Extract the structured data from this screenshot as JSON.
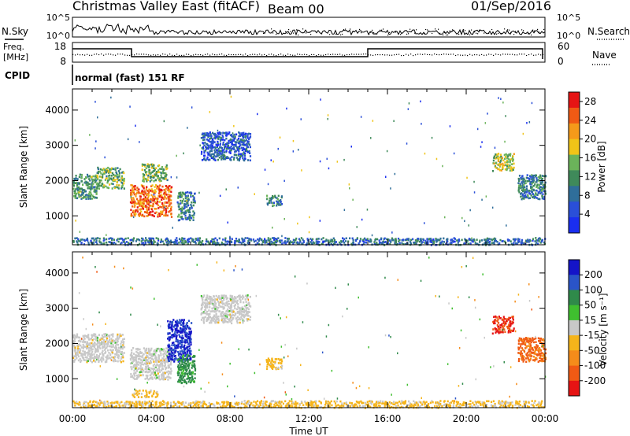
{
  "header": {
    "station": "Christmas Valley East (fitACF)",
    "beam": "Beam 00",
    "date": "01/Sep/2016"
  },
  "noise_panel": {
    "left_label": "N.Sky",
    "right_label": "N.Search",
    "ytick_top": "10^5",
    "ytick_bottom": "10^0"
  },
  "freq_panel": {
    "left_label_line1": "Freq.",
    "left_label_line2": "[MHz]",
    "left_tick_top": "18",
    "left_tick_bottom": "8",
    "right_label": "Nave",
    "right_tick_top": "60",
    "right_tick_bottom": "0"
  },
  "cpid": {
    "label": "CPID",
    "text": "normal (fast) 151 RF"
  },
  "colors": {
    "power_scale": [
      "#1a2ef0",
      "#2a4fd8",
      "#2f6e9a",
      "#3f8a5a",
      "#6bb35a",
      "#f0c418",
      "#f59a1a",
      "#f05a14",
      "#e61414"
    ],
    "velocity_scale": [
      "#e61414",
      "#f05a14",
      "#f58c1a",
      "#f5b41a",
      "#c8c8c8",
      "#3fbf2f",
      "#2f8a4a",
      "#2a54c8",
      "#1414c8"
    ]
  },
  "chart_data": [
    {
      "type": "heatmap",
      "name": "power",
      "xlabel": "",
      "ylabel": "Slant Range [km]",
      "x_ticks": [
        "00:00",
        "04:00",
        "08:00",
        "12:00",
        "16:00",
        "20:00",
        "00:00"
      ],
      "xlim_hours": [
        0,
        24
      ],
      "ylim_km": [
        180,
        4600
      ],
      "y_ticks": [
        1000,
        2000,
        3000,
        4000
      ],
      "colorbar": {
        "label": "Power [dB]",
        "ticks": [
          "4",
          "8",
          "12",
          "16",
          "20",
          "24",
          "28"
        ],
        "range": [
          0,
          30
        ]
      },
      "features": [
        {
          "t_start": 0.0,
          "t_end": 1.2,
          "r_start": 1500,
          "r_end": 2200,
          "typical": 12
        },
        {
          "t_start": 1.2,
          "t_end": 2.6,
          "r_start": 1800,
          "r_end": 2400,
          "typical": 14
        },
        {
          "t_start": 2.9,
          "t_end": 5.0,
          "r_start": 1000,
          "r_end": 1900,
          "typical": 24
        },
        {
          "t_start": 3.5,
          "t_end": 4.8,
          "r_start": 2000,
          "r_end": 2500,
          "typical": 14
        },
        {
          "t_start": 5.3,
          "t_end": 6.2,
          "r_start": 900,
          "r_end": 1700,
          "typical": 10
        },
        {
          "t_start": 6.5,
          "t_end": 9.0,
          "r_start": 2600,
          "r_end": 3400,
          "typical": 6
        },
        {
          "t_start": 9.8,
          "t_end": 10.6,
          "r_start": 1300,
          "r_end": 1600,
          "typical": 10
        },
        {
          "t_start": 21.3,
          "t_end": 22.4,
          "r_start": 2300,
          "r_end": 2800,
          "typical": 16
        },
        {
          "t_start": 22.6,
          "t_end": 24.0,
          "r_start": 1500,
          "r_end": 2200,
          "typical": 10
        },
        {
          "t_start": 0.0,
          "t_end": 24.0,
          "r_start": 200,
          "r_end": 400,
          "typical": 8
        }
      ]
    },
    {
      "type": "heatmap",
      "name": "velocity",
      "xlabel": "Time UT",
      "ylabel": "Slant Range [km]",
      "x_ticks": [
        "00:00",
        "04:00",
        "08:00",
        "12:00",
        "16:00",
        "20:00",
        "00:00"
      ],
      "xlim_hours": [
        0,
        24
      ],
      "ylim_km": [
        180,
        4600
      ],
      "y_ticks": [
        1000,
        2000,
        3000,
        4000
      ],
      "colorbar": {
        "label": "Velocity [m s⁻¹]",
        "ticks": [
          "200",
          "100",
          "50",
          "15",
          "-15",
          "-50",
          "-100",
          "-200"
        ],
        "range": [
          -250,
          250
        ]
      },
      "features": [
        {
          "t_start": 0.0,
          "t_end": 2.6,
          "r_start": 1500,
          "r_end": 2300,
          "typical": 0
        },
        {
          "t_start": 2.9,
          "t_end": 5.0,
          "r_start": 1000,
          "r_end": 1900,
          "typical": 0
        },
        {
          "t_start": 4.8,
          "t_end": 6.0,
          "r_start": 1500,
          "r_end": 2700,
          "typical": 200
        },
        {
          "t_start": 5.3,
          "t_end": 6.2,
          "r_start": 900,
          "r_end": 1700,
          "typical": 100
        },
        {
          "t_start": 6.5,
          "t_end": 9.0,
          "r_start": 2600,
          "r_end": 3400,
          "typical": 0
        },
        {
          "t_start": 9.8,
          "t_end": 10.6,
          "r_start": 1300,
          "r_end": 1600,
          "typical": -50
        },
        {
          "t_start": 21.3,
          "t_end": 22.4,
          "r_start": 2300,
          "r_end": 2800,
          "typical": -200
        },
        {
          "t_start": 22.6,
          "t_end": 24.0,
          "r_start": 1500,
          "r_end": 2200,
          "typical": -150
        },
        {
          "t_start": 3.0,
          "t_end": 4.3,
          "r_start": 500,
          "r_end": 700,
          "typical": -50
        },
        {
          "t_start": 0.0,
          "t_end": 24.0,
          "r_start": 200,
          "r_end": 400,
          "typical": -40
        }
      ]
    }
  ]
}
